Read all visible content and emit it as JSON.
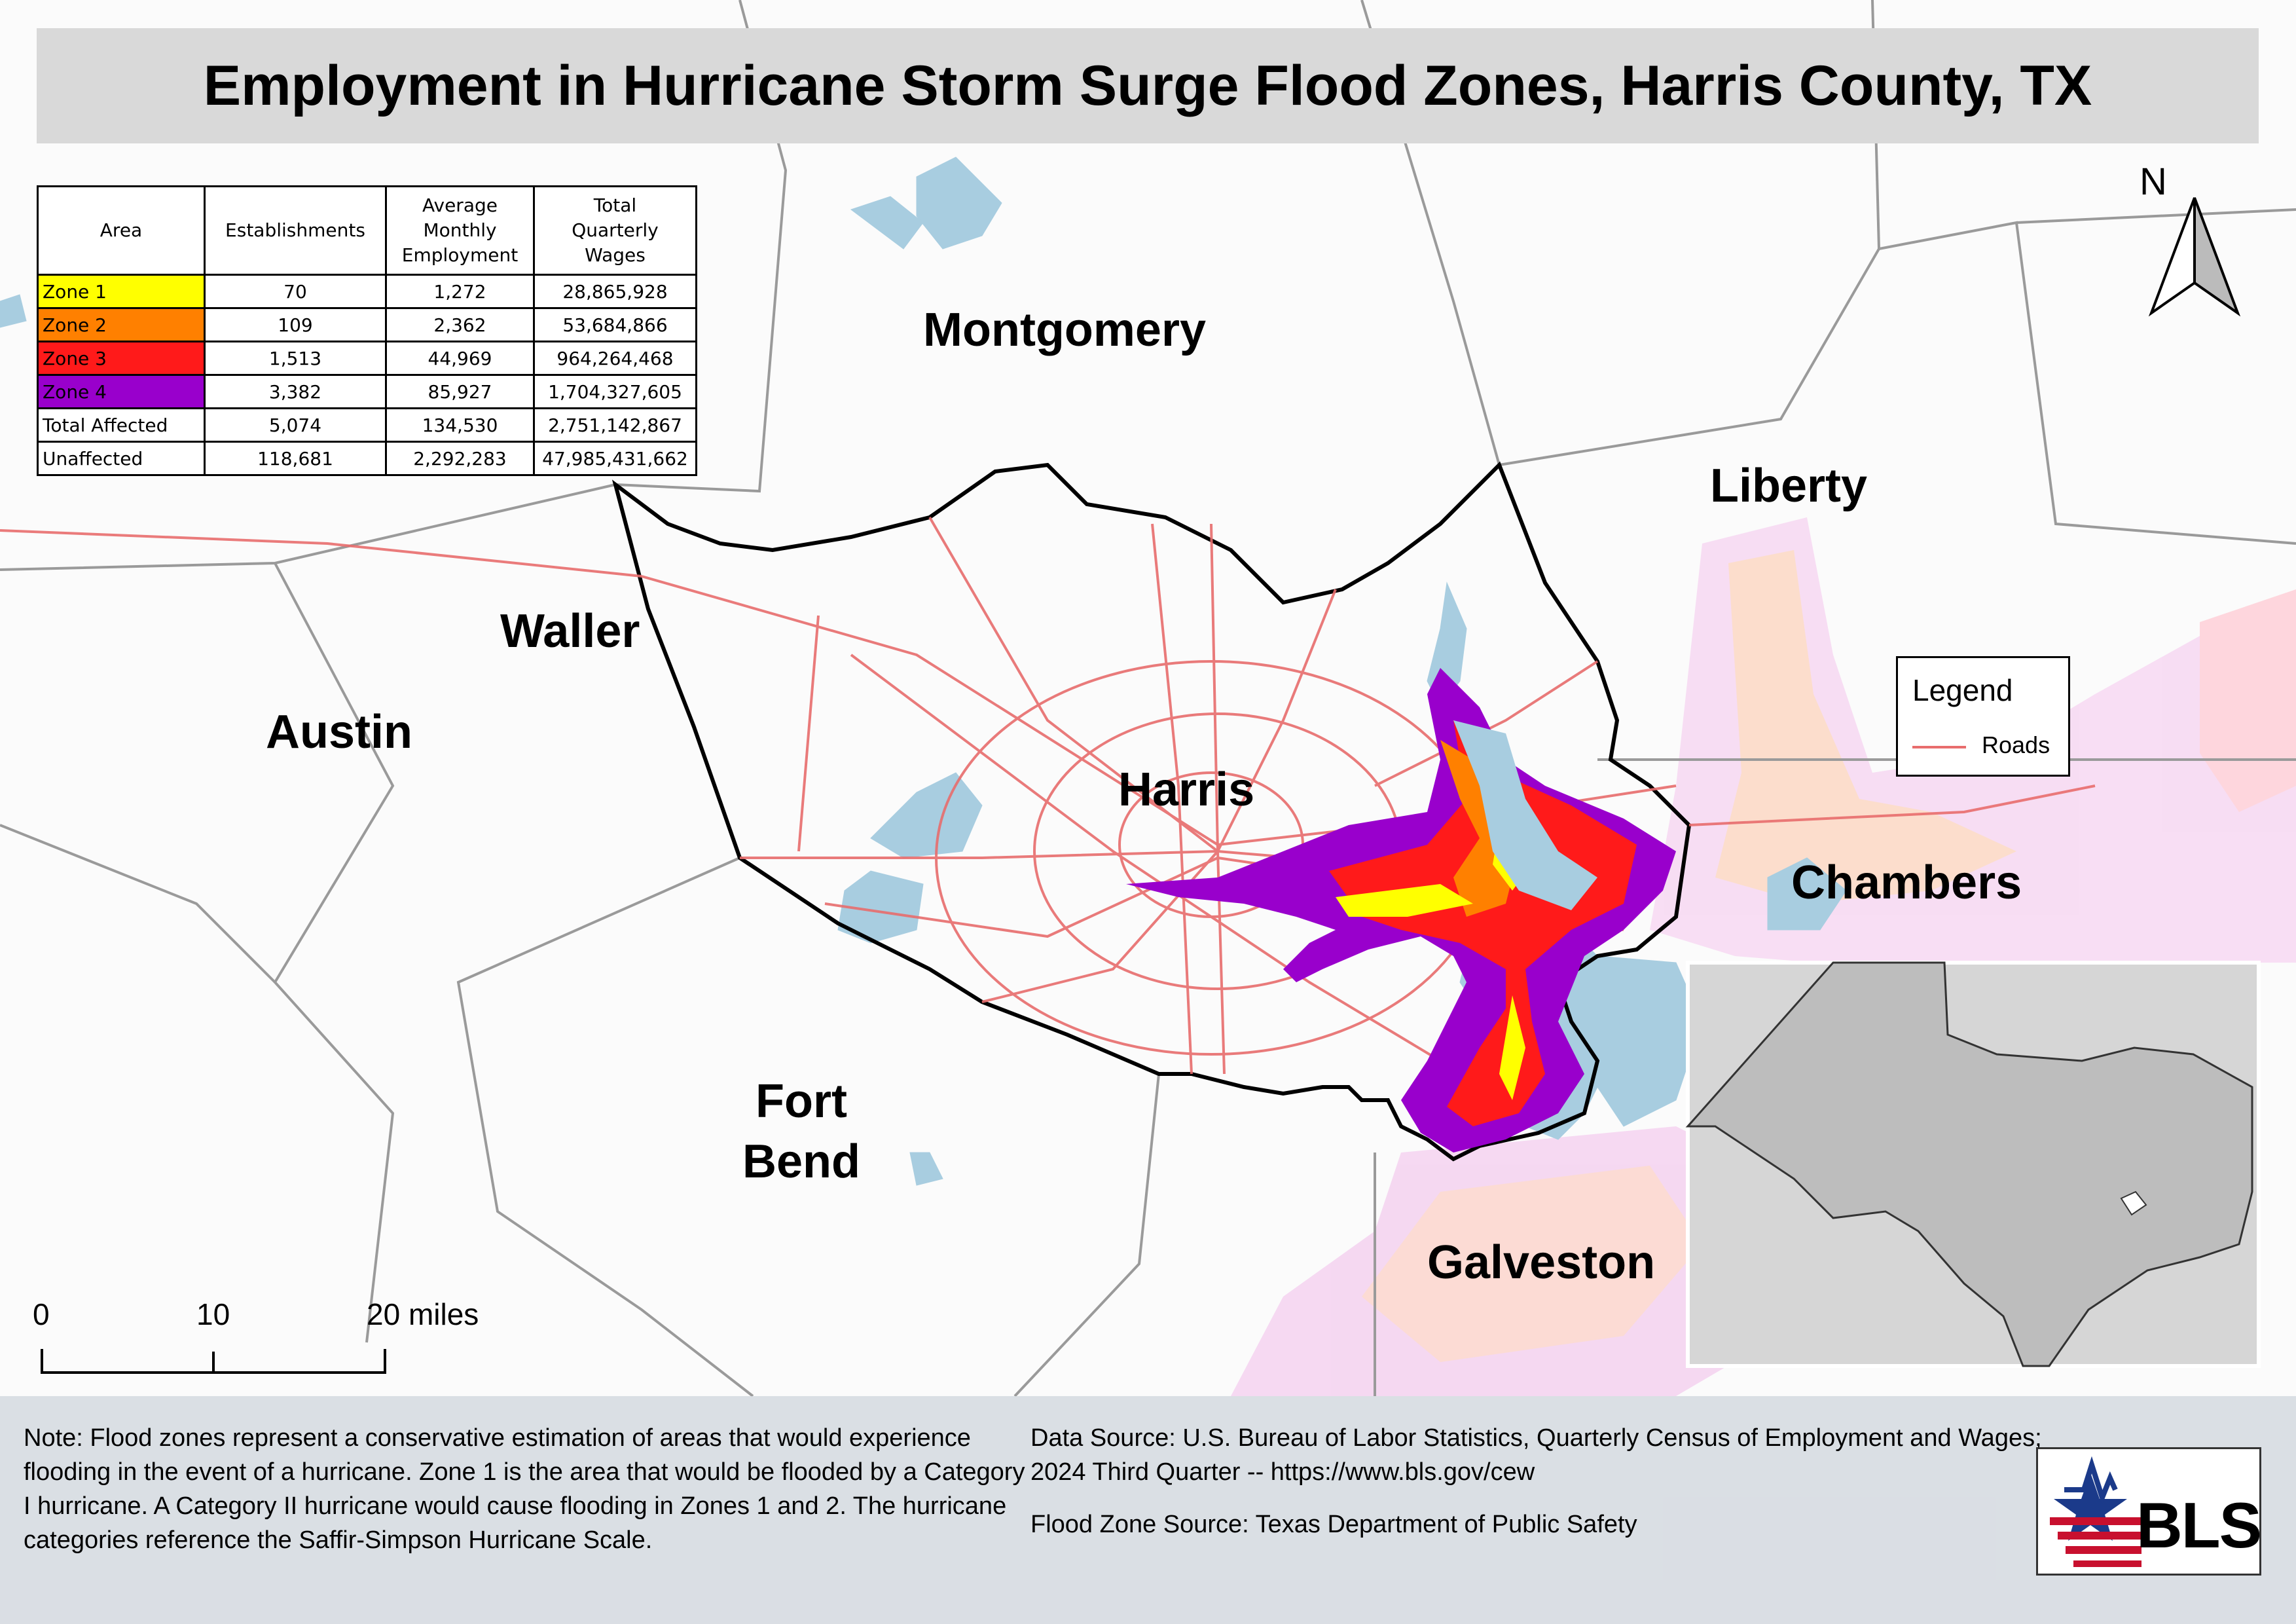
{
  "title": "Employment in Hurricane Storm Surge Flood Zones, Harris County, TX",
  "table": {
    "headers": [
      "Area",
      "Establishments",
      "Average Monthly Employment",
      "Total Quarterly Wages"
    ],
    "rows": [
      {
        "area": "Zone 1",
        "color": "#ffff00",
        "establishments": "70",
        "employment": "1,272",
        "wages": "28,865,928"
      },
      {
        "area": "Zone 2",
        "color": "#ff8000",
        "establishments": "109",
        "employment": "2,362",
        "wages": "53,684,866"
      },
      {
        "area": "Zone 3",
        "color": "#ff1a1a",
        "establishments": "1,513",
        "employment": "44,969",
        "wages": "964,264,468"
      },
      {
        "area": "Zone 4",
        "color": "#9900cc",
        "establishments": "3,382",
        "employment": "85,927",
        "wages": "1,704,327,605"
      },
      {
        "area": "Total Affected",
        "color": "#ffffff",
        "establishments": "5,074",
        "employment": "134,530",
        "wages": "2,751,142,867"
      },
      {
        "area": "Unaffected",
        "color": "#ffffff",
        "establishments": "118,681",
        "employment": "2,292,283",
        "wages": "47,985,431,662"
      }
    ]
  },
  "counties": {
    "montgomery": "Montgomery",
    "liberty": "Liberty",
    "waller": "Waller",
    "austin": "Austin",
    "harris": "Harris",
    "chambers": "Chambers",
    "fort_bend": "Fort Bend",
    "galveston": "Galveston"
  },
  "legend": {
    "title": "Legend",
    "roads_label": "Roads",
    "roads_color": "#e86d6d"
  },
  "north": "N",
  "scale": {
    "labels": [
      "0",
      "10",
      "20 miles"
    ]
  },
  "note": "Note: Flood zones represent a conservative estimation of areas that would experience flooding in the event of a hurricane. Zone 1 is the area that would be flooded by a Category I hurricane. A Category II hurricane would cause flooding in Zones 1 and 2. The hurricane categories reference the Saffir-Simpson Hurricane Scale.",
  "data_source": "Data Source: U.S. Bureau of Labor Statistics, Quarterly Census of Employment and Wages; 2024 Third Quarter -- https://www.bls.gov/cew",
  "flood_source": "Flood Zone Source: Texas Department of Public Safety",
  "logo_text": "BLS",
  "colors": {
    "water": "#a8cde0",
    "zone1": "#ffff00",
    "zone2": "#ff8000",
    "zone3": "#ff1a1a",
    "zone4": "#9900cc",
    "roads": "#e86d6d",
    "texas_fill": "#bdbdbd",
    "inset_bg": "#d6d6d6"
  }
}
